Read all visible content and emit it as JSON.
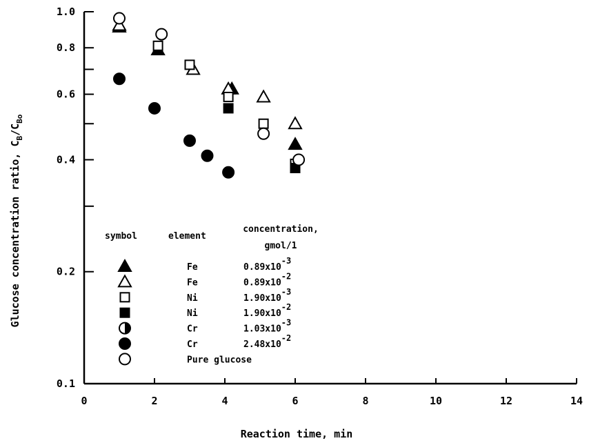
{
  "chart_data": {
    "type": "scatter",
    "xlabel": "Reaction time, min",
    "ylabel_main": "Glucose concentration ratio, C",
    "ylabel_sub1": "B",
    "ylabel_mid": "/C",
    "ylabel_sub2": "Bo",
    "xlim": [
      0,
      14
    ],
    "ylim": [
      0.1,
      1.0
    ],
    "yscale": "log",
    "xticks": [
      0,
      2,
      4,
      6,
      8,
      10,
      12,
      14
    ],
    "yticks": [
      {
        "value": 0.1,
        "label": "0.1"
      },
      {
        "value": 0.2,
        "label": "0.2"
      },
      {
        "value": 0.4,
        "label": "0.4"
      },
      {
        "value": 0.6,
        "label": "0.6"
      },
      {
        "value": 0.8,
        "label": "0.8"
      },
      {
        "value": 1.0,
        "label": "1.0"
      }
    ],
    "yticks_unlabeled": [
      0.3,
      0.5,
      0.7
    ],
    "legend": {
      "header_symbol": "symbol",
      "header_element": "element",
      "header_conc_1": "concentration,",
      "header_conc_2": "gmol/1",
      "entries": [
        {
          "marker": "triangle-filled",
          "element": "Fe",
          "mantissa": "0.89x10",
          "exponent": "-3"
        },
        {
          "marker": "triangle-open",
          "element": "Fe",
          "mantissa": "0.89x10",
          "exponent": "-2"
        },
        {
          "marker": "square-open",
          "element": "Ni",
          "mantissa": "1.90x10",
          "exponent": "-3"
        },
        {
          "marker": "square-filled",
          "element": "Ni",
          "mantissa": "1.90x10",
          "exponent": "-2"
        },
        {
          "marker": "circle-half",
          "element": "Cr",
          "mantissa": "1.03x10",
          "exponent": "-3"
        },
        {
          "marker": "circle-filled",
          "element": "Cr",
          "mantissa": "2.48x10",
          "exponent": "-2"
        },
        {
          "marker": "circle-open",
          "element": "Pure glucose",
          "mantissa": "",
          "exponent": ""
        }
      ]
    },
    "series": [
      {
        "marker": "triangle-filled",
        "points": [
          [
            1,
            0.91
          ],
          [
            2.1,
            0.79
          ],
          [
            4.2,
            0.62
          ],
          [
            6,
            0.44
          ]
        ]
      },
      {
        "marker": "triangle-open",
        "points": [
          [
            1,
            0.92
          ],
          [
            3.1,
            0.7
          ],
          [
            4.1,
            0.62
          ],
          [
            5.1,
            0.59
          ],
          [
            6,
            0.5
          ]
        ]
      },
      {
        "marker": "square-open",
        "points": [
          [
            2.1,
            0.81
          ],
          [
            3,
            0.72
          ],
          [
            4.1,
            0.59
          ],
          [
            5.1,
            0.5
          ],
          [
            6,
            0.39
          ]
        ]
      },
      {
        "marker": "square-filled",
        "points": [
          [
            4.1,
            0.55
          ],
          [
            6,
            0.38
          ]
        ]
      },
      {
        "marker": "circle-filled",
        "points": [
          [
            1,
            0.66
          ],
          [
            2,
            0.55
          ],
          [
            3,
            0.45
          ],
          [
            3.5,
            0.41
          ],
          [
            4.1,
            0.37
          ]
        ]
      },
      {
        "marker": "circle-open",
        "points": [
          [
            1,
            0.96
          ],
          [
            2.2,
            0.87
          ],
          [
            5.1,
            0.47
          ],
          [
            6.1,
            0.4
          ]
        ]
      }
    ]
  }
}
